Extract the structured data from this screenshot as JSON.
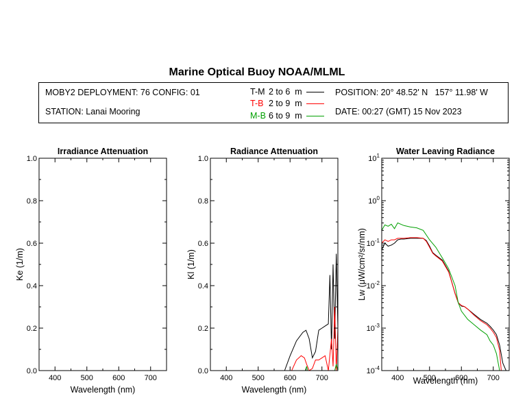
{
  "header": {
    "title": "Marine Optical Buoy NOAA/MLML",
    "deployment": "MOBY2 DEPLOYMENT: 76 CONFIG: 01",
    "station": "STATION: Lanai Mooring",
    "position": "POSITION: 20° 48.52' N   157° 11.98' W",
    "date": "DATE: 00:27 (GMT) 15 Nov 2023",
    "legend": [
      {
        "code": "T-M",
        "text": "2 to 6  m",
        "color": "#000000"
      },
      {
        "code": "T-B",
        "text": "2 to 9  m",
        "color": "#ff0000"
      },
      {
        "code": "M-B",
        "text": "6 to 9  m",
        "color": "#00a000"
      }
    ]
  },
  "chart_data": [
    {
      "type": "line",
      "title": "Irradiance Attenuation",
      "xlabel": "Wavelength (nm)",
      "ylabel": "Ke  (1/m)",
      "xlim": [
        350,
        750
      ],
      "ylim": [
        0,
        1
      ],
      "xticks": [
        "400",
        "500",
        "600",
        "700"
      ],
      "yticks": [
        "0.0",
        "0.2",
        "0.4",
        "0.6",
        "0.8",
        "1.0"
      ],
      "series": []
    },
    {
      "type": "line",
      "title": "Radiance Attenuation",
      "xlabel": "Wavelength (nm)",
      "ylabel": "Kl  (1/m)",
      "xlim": [
        350,
        750
      ],
      "ylim": [
        0,
        1
      ],
      "xticks": [
        "400",
        "500",
        "600",
        "700"
      ],
      "yticks": [
        "0.0",
        "0.2",
        "0.4",
        "0.6",
        "0.8",
        "1.0"
      ],
      "series": [
        {
          "color": "#000000",
          "x": [
            583,
            600,
            620,
            640,
            650,
            660,
            670,
            680,
            690,
            700,
            710,
            720,
            725,
            730,
            735,
            740,
            745,
            750
          ],
          "y": [
            0.0,
            0.07,
            0.14,
            0.18,
            0.19,
            0.15,
            0.06,
            0.09,
            0.19,
            0.2,
            0.21,
            0.22,
            0.45,
            0.1,
            0.5,
            0.15,
            0.55,
            0.2
          ]
        },
        {
          "color": "#ff0000",
          "x": [
            605,
            620,
            635,
            645,
            652,
            660,
            670,
            680,
            690,
            700,
            710,
            720,
            730,
            735,
            740,
            745,
            750
          ],
          "y": [
            0.0,
            0.05,
            0.07,
            0.06,
            0.03,
            0.0,
            0.01,
            0.05,
            0.05,
            0.06,
            0.07,
            0.0,
            0.15,
            0.02,
            0.3,
            0.0,
            0.2
          ]
        },
        {
          "color": "#00a000",
          "x": [
            648,
            652,
            655,
            740,
            745,
            750
          ],
          "y": [
            0.0,
            0.02,
            0.0,
            0.0,
            0.03,
            0.0
          ]
        }
      ]
    },
    {
      "type": "line",
      "title": "Water Leaving Radiance",
      "xlabel": "Wavelength (nm)",
      "ylabel": "Lw  (μW/cm²/sr/nm)",
      "xlim": [
        350,
        750
      ],
      "ylim": [
        0.0001,
        10
      ],
      "yscale": "log",
      "xticks": [
        "400",
        "500",
        "600",
        "700"
      ],
      "yticks": [
        {
          "base": "10",
          "exp": "1",
          "value": 10
        },
        {
          "base": "10",
          "exp": "0",
          "value": 1
        },
        {
          "base": "10",
          "exp": "-1",
          "value": 0.1
        },
        {
          "base": "10",
          "exp": "-2",
          "value": 0.01
        },
        {
          "base": "10",
          "exp": "-3",
          "value": 0.001
        },
        {
          "base": "10",
          "exp": "-4",
          "value": 0.0001
        }
      ],
      "series": [
        {
          "color": "#000000",
          "x": [
            350,
            360,
            370,
            380,
            390,
            400,
            410,
            420,
            440,
            460,
            480,
            490,
            500,
            510,
            520,
            540,
            560,
            570,
            580,
            590,
            600,
            610,
            620,
            640,
            660,
            680,
            690,
            700,
            710,
            720,
            730,
            740
          ],
          "y": [
            0.07,
            0.1,
            0.085,
            0.09,
            0.1,
            0.12,
            0.125,
            0.125,
            0.13,
            0.13,
            0.13,
            0.115,
            0.085,
            0.06,
            0.052,
            0.04,
            0.022,
            0.012,
            0.0065,
            0.004,
            0.0033,
            0.0032,
            0.0028,
            0.0021,
            0.0016,
            0.0013,
            0.0011,
            0.0009,
            0.0007,
            0.0004,
            0.00015,
            0.0001
          ]
        },
        {
          "color": "#ff0000",
          "x": [
            350,
            360,
            370,
            380,
            390,
            400,
            420,
            440,
            460,
            480,
            490,
            500,
            510,
            520,
            540,
            560,
            570,
            580,
            590,
            600,
            610,
            620,
            640,
            660,
            680,
            690,
            700,
            710,
            720,
            725
          ],
          "y": [
            0.1,
            0.12,
            0.11,
            0.12,
            0.12,
            0.13,
            0.13,
            0.135,
            0.135,
            0.13,
            0.11,
            0.08,
            0.058,
            0.05,
            0.038,
            0.021,
            0.012,
            0.0065,
            0.004,
            0.0034,
            0.0032,
            0.0028,
            0.002,
            0.0015,
            0.0012,
            0.001,
            0.0008,
            0.0006,
            0.0003,
            0.0001
          ]
        },
        {
          "color": "#00a000",
          "x": [
            350,
            360,
            370,
            380,
            390,
            400,
            420,
            440,
            460,
            480,
            500,
            520,
            540,
            560,
            580,
            590,
            600,
            610,
            620,
            640,
            660,
            680,
            690,
            700,
            710,
            720
          ],
          "y": [
            0.2,
            0.27,
            0.25,
            0.28,
            0.22,
            0.3,
            0.26,
            0.24,
            0.23,
            0.2,
            0.12,
            0.08,
            0.045,
            0.025,
            0.01,
            0.004,
            0.0025,
            0.002,
            0.0016,
            0.0012,
            0.0009,
            0.0007,
            0.0005,
            0.0004,
            0.00025,
            0.0001
          ]
        }
      ]
    }
  ]
}
